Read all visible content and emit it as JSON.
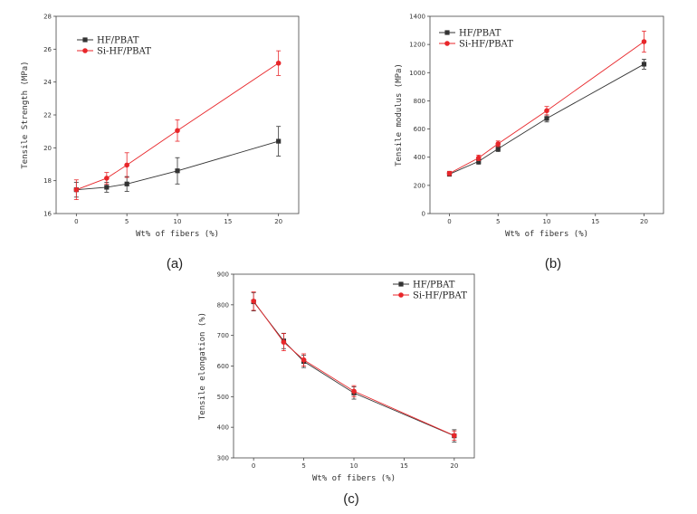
{
  "figure": {
    "panel_labels": [
      "(a)",
      "(b)",
      "(c)"
    ]
  },
  "chart_data": [
    {
      "type": "line",
      "panel": "(a)",
      "title": "",
      "xlabel": "Wt% of fibers (%)",
      "ylabel": "Tensile Strength (MPa)",
      "xlim": [
        -2,
        22
      ],
      "ylim": [
        16,
        28
      ],
      "xticks": [
        0,
        5,
        10,
        15,
        20
      ],
      "yticks": [
        16,
        18,
        20,
        22,
        24,
        26,
        28
      ],
      "legend_position": "top-left",
      "x": [
        0,
        3,
        5,
        10,
        20
      ],
      "series": [
        {
          "name": "HF/PBAT",
          "color": "#333333",
          "marker": "square",
          "values": [
            17.45,
            17.6,
            17.8,
            18.6,
            20.4
          ],
          "errors": [
            0.45,
            0.3,
            0.45,
            0.8,
            0.9
          ]
        },
        {
          "name": "Si-HF/PBAT",
          "color": "#e8262a",
          "marker": "circle",
          "values": [
            17.45,
            18.15,
            18.95,
            21.05,
            25.15
          ],
          "errors": [
            0.6,
            0.35,
            0.75,
            0.65,
            0.75
          ]
        }
      ]
    },
    {
      "type": "line",
      "panel": "(b)",
      "title": "",
      "xlabel": "Wt% of fibers (%)",
      "ylabel": "Tensile modulus (MPa)",
      "xlim": [
        -2,
        22
      ],
      "ylim": [
        0,
        1400
      ],
      "xticks": [
        0,
        5,
        10,
        15,
        20
      ],
      "yticks": [
        0,
        200,
        400,
        600,
        800,
        1000,
        1200,
        1400
      ],
      "legend_position": "top-left",
      "x": [
        0,
        3,
        5,
        10,
        20
      ],
      "series": [
        {
          "name": "HF/PBAT",
          "color": "#333333",
          "marker": "square",
          "values": [
            280,
            370,
            460,
            675,
            1060
          ],
          "errors": [
            15,
            20,
            20,
            25,
            35
          ]
        },
        {
          "name": "Si-HF/PBAT",
          "color": "#e8262a",
          "marker": "circle",
          "values": [
            285,
            395,
            495,
            730,
            1220
          ],
          "errors": [
            15,
            20,
            20,
            30,
            75
          ]
        }
      ]
    },
    {
      "type": "line",
      "panel": "(c)",
      "title": "",
      "xlabel": "Wt% of fibers (%)",
      "ylabel": "Tensile elongation (%)",
      "xlim": [
        -2,
        22
      ],
      "ylim": [
        300,
        900
      ],
      "xticks": [
        0,
        5,
        10,
        15,
        20
      ],
      "yticks": [
        300,
        400,
        500,
        600,
        700,
        800,
        900
      ],
      "legend_position": "top-right",
      "x": [
        0,
        3,
        5,
        10,
        20
      ],
      "series": [
        {
          "name": "HF/PBAT",
          "color": "#333333",
          "marker": "square",
          "values": [
            810,
            682,
            615,
            512,
            372
          ],
          "errors": [
            30,
            25,
            20,
            20,
            20
          ]
        },
        {
          "name": "Si-HF/PBAT",
          "color": "#e8262a",
          "marker": "circle",
          "values": [
            812,
            678,
            620,
            518,
            373
          ],
          "errors": [
            30,
            28,
            20,
            18,
            15
          ]
        }
      ]
    }
  ]
}
